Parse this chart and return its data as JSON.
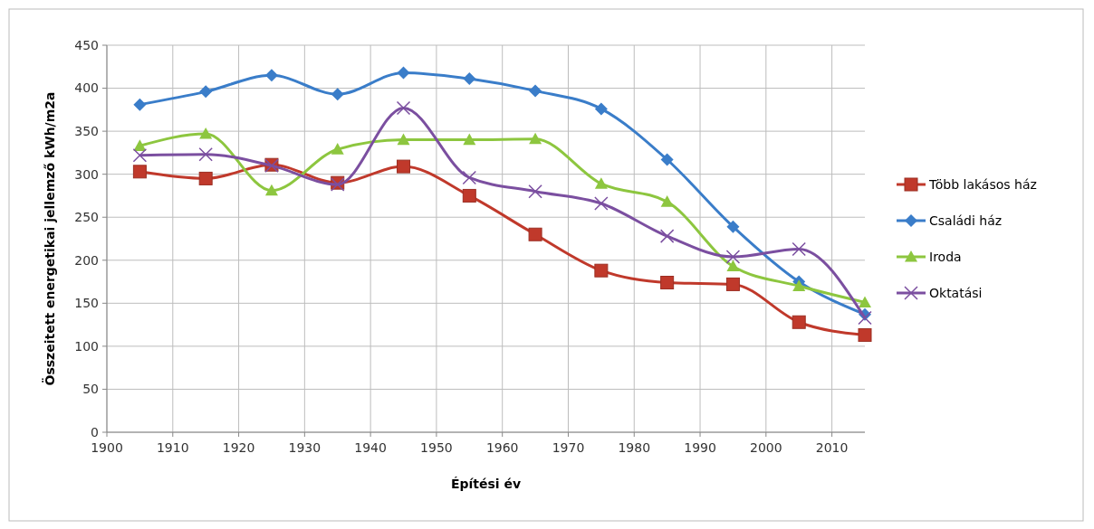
{
  "chart_data": {
    "type": "line",
    "xlabel": "Építési év",
    "ylabel": "Összeitett energetikai jellemző kWh/m2a",
    "x": [
      1905,
      1915,
      1925,
      1935,
      1945,
      1955,
      1965,
      1975,
      1985,
      1995,
      2005,
      2015
    ],
    "series": [
      {
        "name": "Több lakásos ház",
        "color": "#c0392b",
        "marker": "square",
        "values": [
          303,
          295,
          311,
          290,
          309,
          275,
          230,
          188,
          174,
          172,
          128,
          113
        ]
      },
      {
        "name": "Családi ház",
        "color": "#3a7dc9",
        "marker": "diamond",
        "values": [
          381,
          396,
          415,
          393,
          418,
          411,
          397,
          376,
          317,
          239,
          175,
          137
        ]
      },
      {
        "name": "Iroda",
        "color": "#8dc63f",
        "marker": "triangle",
        "values": [
          333,
          347,
          281,
          329,
          340,
          340,
          341,
          289,
          268,
          193,
          170,
          151
        ]
      },
      {
        "name": "Oktatási",
        "color": "#7b4fa0",
        "marker": "cross",
        "values": [
          322,
          323,
          310,
          288,
          377,
          296,
          280,
          266,
          228,
          204,
          213,
          133
        ]
      }
    ],
    "xlim": [
      1900,
      2015
    ],
    "xticks": [
      1900,
      1910,
      1920,
      1930,
      1940,
      1950,
      1960,
      1970,
      1980,
      1990,
      2000,
      2010
    ],
    "ylim": [
      0,
      450
    ],
    "yticks": [
      0,
      50,
      100,
      150,
      200,
      250,
      300,
      350,
      400,
      450
    ],
    "grid": true,
    "legend": "right",
    "line_style": "solid"
  }
}
